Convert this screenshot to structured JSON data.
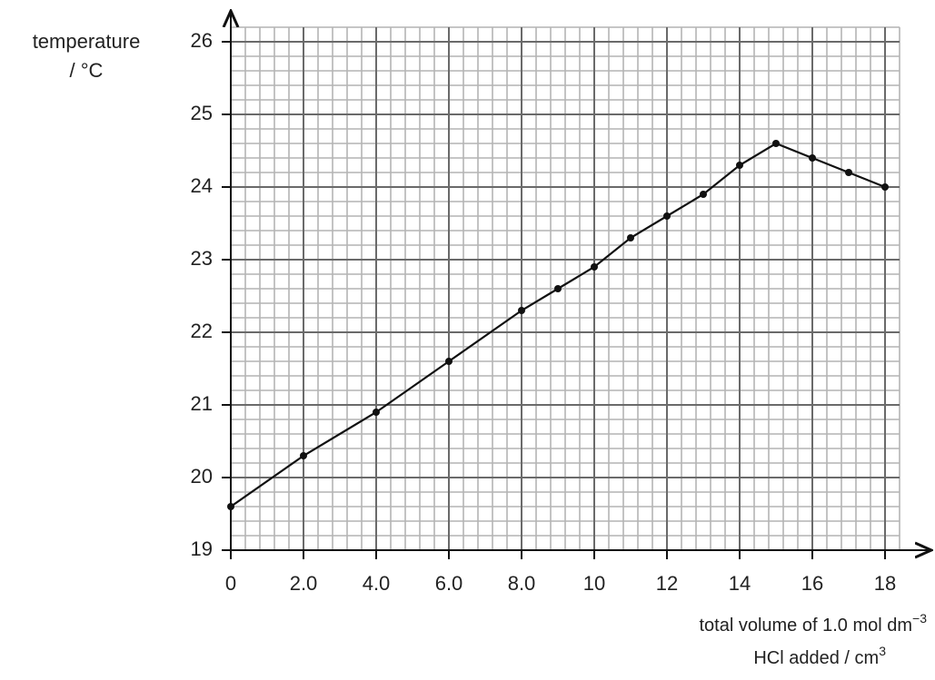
{
  "chart_data": {
    "type": "line",
    "y_label": [
      "temperature",
      "/ °C"
    ],
    "x_label": [
      {
        "text": "total volume of 1.0 mol dm",
        "sup": "−3"
      },
      {
        "text": "HCl added / cm",
        "sup": "3"
      }
    ],
    "x": [
      0,
      2,
      4,
      6,
      8,
      9,
      10,
      11,
      12,
      13,
      14,
      15,
      16,
      17,
      18
    ],
    "series": [
      {
        "color": "#111111",
        "values": [
          19.6,
          20.3,
          20.9,
          21.6,
          22.3,
          22.6,
          22.9,
          23.3,
          23.6,
          23.9,
          24.3,
          24.6,
          24.4,
          24.2,
          24.0
        ]
      }
    ],
    "xlim": [
      0,
      18.4
    ],
    "ylim": [
      19,
      26.2
    ],
    "xticks": [
      0,
      {
        "value": 2,
        "label": "2.0"
      },
      {
        "value": 4,
        "label": "4.0"
      },
      {
        "value": 6,
        "label": "6.0"
      },
      {
        "value": 8,
        "label": "8.0"
      },
      10,
      12,
      14,
      16,
      18
    ],
    "yticks": [
      19,
      20,
      21,
      22,
      23,
      24,
      25,
      26
    ],
    "grid": true,
    "minor_grid": {
      "x": 0.4,
      "y": 0.2
    }
  }
}
